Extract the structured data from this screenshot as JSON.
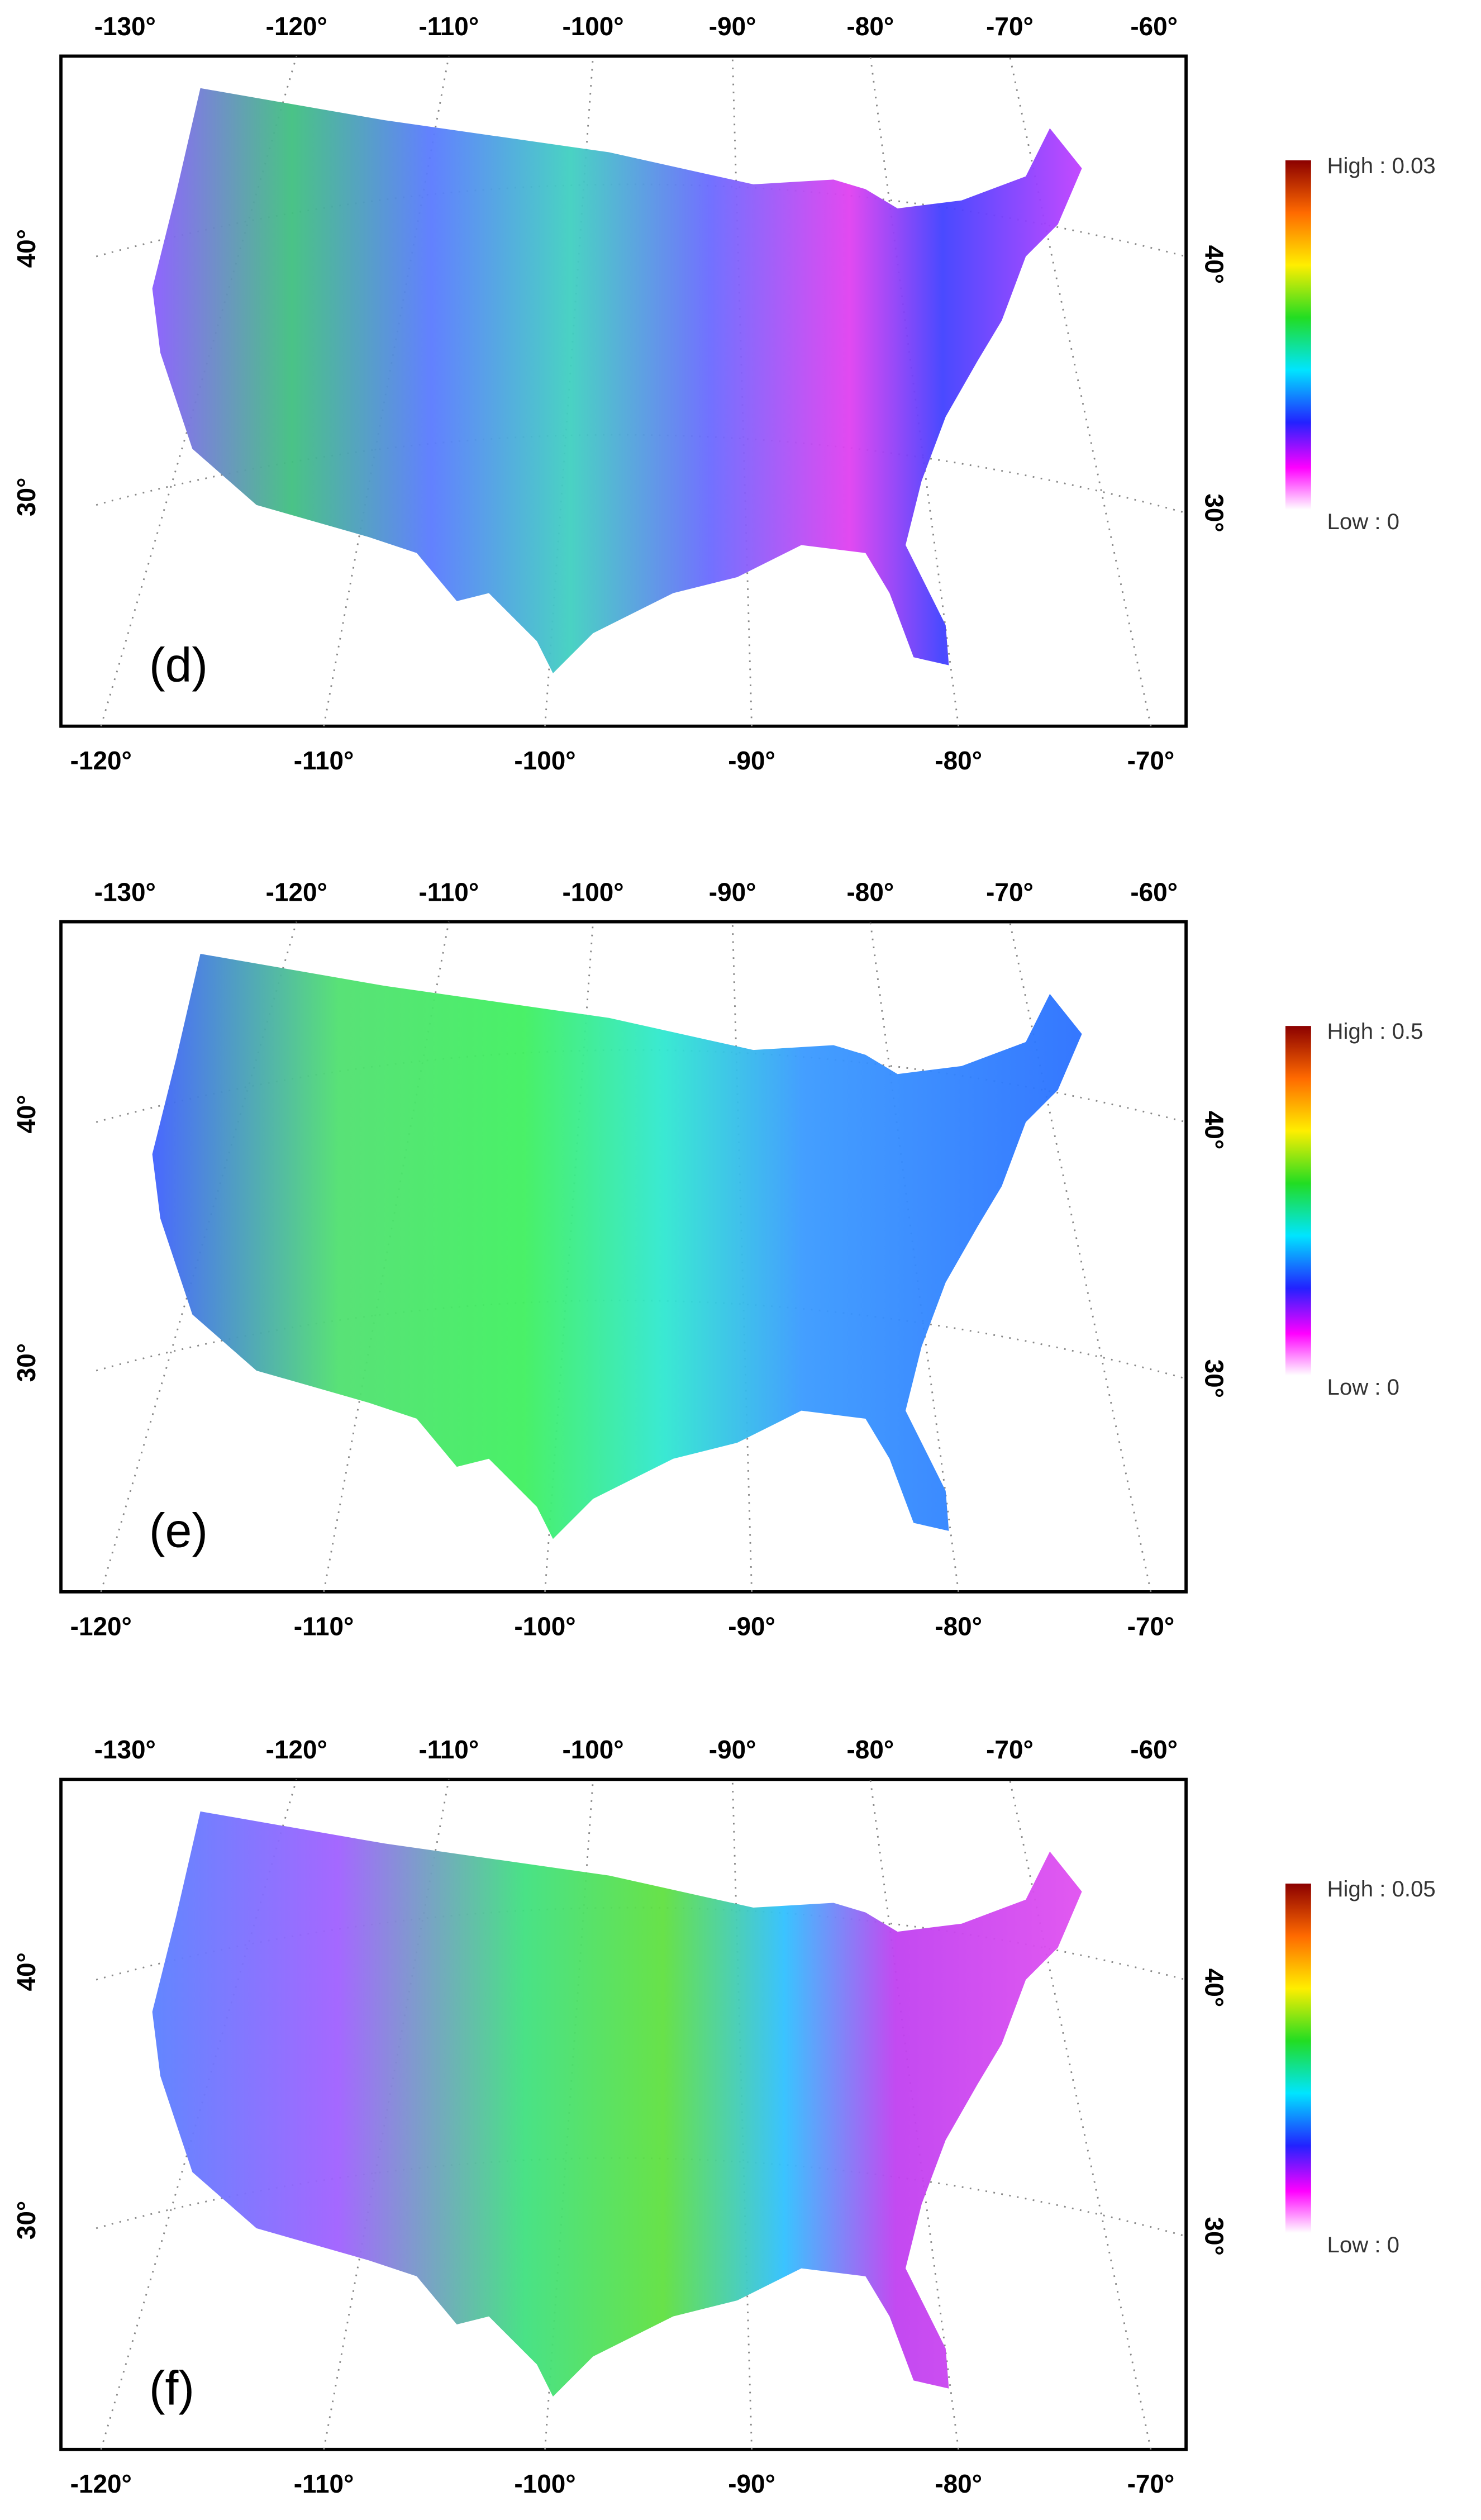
{
  "panels": [
    {
      "label": "(d)",
      "legend": {
        "high": "High : 0.03",
        "low": "Low : 0"
      },
      "top_labels": [
        "-130°",
        "-120°",
        "-110°",
        "-100°",
        "-90°",
        "-80°",
        "-70°",
        "-60°"
      ],
      "bottom_labels": [
        "-120°",
        "-110°",
        "-100°",
        "-90°",
        "-80°",
        "-70°"
      ],
      "left_labels": [
        "40°",
        "30°"
      ],
      "right_labels": [
        "40°",
        "30°"
      ]
    },
    {
      "label": "(e)",
      "legend": {
        "high": "High : 0.5",
        "low": "Low : 0"
      },
      "top_labels": [
        "-130°",
        "-120°",
        "-110°",
        "-100°",
        "-90°",
        "-80°",
        "-70°",
        "-60°"
      ],
      "bottom_labels": [
        "-120°",
        "-110°",
        "-100°",
        "-90°",
        "-80°",
        "-70°"
      ],
      "left_labels": [
        "40°",
        "30°"
      ],
      "right_labels": [
        "40°",
        "30°"
      ]
    },
    {
      "label": "(f)",
      "legend": {
        "high": "High : 0.05",
        "low": "Low : 0"
      },
      "top_labels": [
        "-130°",
        "-120°",
        "-110°",
        "-100°",
        "-90°",
        "-80°",
        "-70°",
        "-60°"
      ],
      "bottom_labels": [
        "-120°",
        "-110°",
        "-100°",
        "-90°",
        "-80°",
        "-70°"
      ],
      "left_labels": [
        "40°",
        "30°"
      ],
      "right_labels": [
        "40°",
        "30°"
      ]
    }
  ]
}
